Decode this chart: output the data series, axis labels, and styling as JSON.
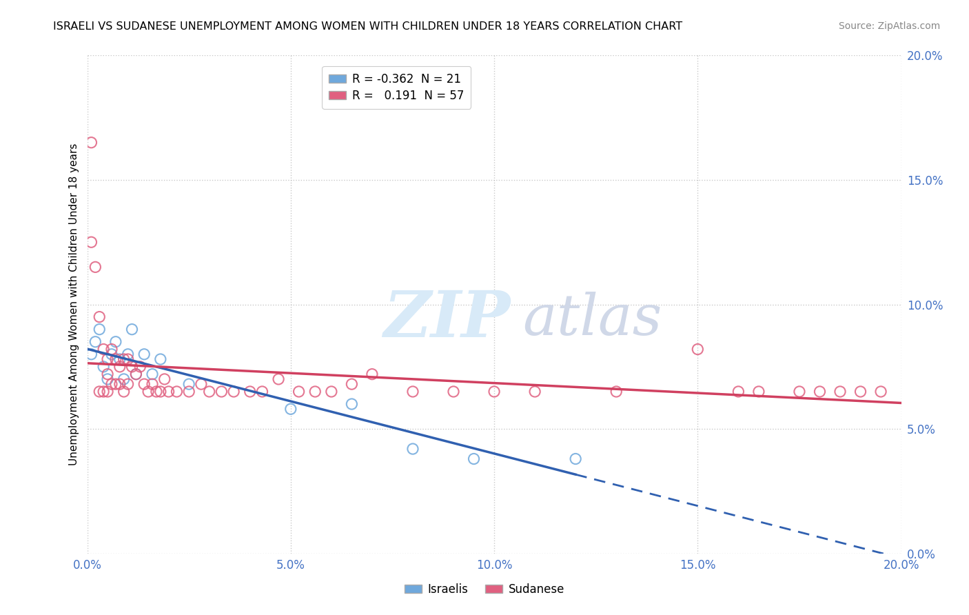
{
  "title": "ISRAELI VS SUDANESE UNEMPLOYMENT AMONG WOMEN WITH CHILDREN UNDER 18 YEARS CORRELATION CHART",
  "source": "Source: ZipAtlas.com",
  "ylabel": "Unemployment Among Women with Children Under 18 years",
  "xlabel": "",
  "xlim": [
    0.0,
    0.2
  ],
  "ylim": [
    0.0,
    0.2
  ],
  "xticks": [
    0.0,
    0.05,
    0.1,
    0.15,
    0.2
  ],
  "yticks": [
    0.0,
    0.05,
    0.1,
    0.15,
    0.2
  ],
  "xticklabels": [
    "0.0%",
    "5.0%",
    "10.0%",
    "15.0%",
    "20.0%"
  ],
  "yticklabels": [
    "0.0%",
    "5.0%",
    "10.0%",
    "15.0%",
    "20.0%"
  ],
  "israeli_color": "#6fa8dc",
  "sudanese_color": "#e06080",
  "israeli_line_color": "#3060b0",
  "sudanese_line_color": "#d04060",
  "israeli_R": -0.362,
  "israeli_N": 21,
  "sudanese_R": 0.191,
  "sudanese_N": 57,
  "israeli_points_x": [
    0.001,
    0.002,
    0.003,
    0.004,
    0.005,
    0.006,
    0.007,
    0.008,
    0.009,
    0.01,
    0.011,
    0.012,
    0.014,
    0.016,
    0.018,
    0.025,
    0.05,
    0.065,
    0.08,
    0.095,
    0.12
  ],
  "israeli_points_y": [
    0.08,
    0.085,
    0.09,
    0.075,
    0.07,
    0.08,
    0.085,
    0.078,
    0.07,
    0.08,
    0.09,
    0.072,
    0.08,
    0.072,
    0.078,
    0.068,
    0.058,
    0.06,
    0.042,
    0.038,
    0.038
  ],
  "sudanese_points_x": [
    0.001,
    0.001,
    0.002,
    0.003,
    0.003,
    0.004,
    0.004,
    0.005,
    0.005,
    0.005,
    0.006,
    0.006,
    0.007,
    0.007,
    0.008,
    0.008,
    0.009,
    0.009,
    0.01,
    0.01,
    0.011,
    0.012,
    0.013,
    0.014,
    0.015,
    0.016,
    0.017,
    0.018,
    0.019,
    0.02,
    0.022,
    0.025,
    0.028,
    0.03,
    0.033,
    0.036,
    0.04,
    0.043,
    0.047,
    0.052,
    0.056,
    0.06,
    0.065,
    0.07,
    0.08,
    0.09,
    0.1,
    0.11,
    0.13,
    0.15,
    0.16,
    0.165,
    0.175,
    0.18,
    0.185,
    0.19,
    0.195
  ],
  "sudanese_points_y": [
    0.165,
    0.125,
    0.115,
    0.095,
    0.065,
    0.082,
    0.065,
    0.078,
    0.072,
    0.065,
    0.082,
    0.068,
    0.078,
    0.068,
    0.068,
    0.075,
    0.078,
    0.065,
    0.078,
    0.068,
    0.075,
    0.072,
    0.075,
    0.068,
    0.065,
    0.068,
    0.065,
    0.065,
    0.07,
    0.065,
    0.065,
    0.065,
    0.068,
    0.065,
    0.065,
    0.065,
    0.065,
    0.065,
    0.07,
    0.065,
    0.065,
    0.065,
    0.068,
    0.072,
    0.065,
    0.065,
    0.065,
    0.065,
    0.065,
    0.082,
    0.065,
    0.065,
    0.065,
    0.065,
    0.065,
    0.065,
    0.065
  ]
}
